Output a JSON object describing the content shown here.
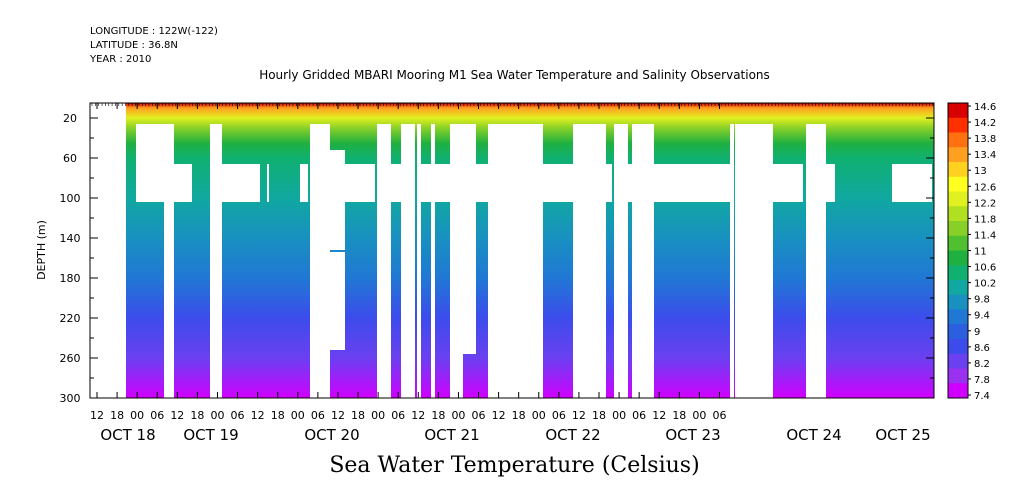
{
  "meta_lines": [
    "LONGITUDE : 122W(-122)",
    "LATITUDE : 36.8N",
    "YEAR : 2010"
  ],
  "chart_data": {
    "type": "heatmap",
    "title": "Hourly Gridded MBARI Mooring M1 Sea Water Temperature and Salinity Observations",
    "xlabel": "Sea Water Temperature (Celsius)",
    "ylabel": "DEPTH (m)",
    "y_ticks": [
      20,
      60,
      100,
      140,
      180,
      220,
      260,
      300
    ],
    "ylim": [
      300,
      0
    ],
    "x_hour_ticks": [
      "12",
      "18",
      "00",
      "06",
      "12",
      "18",
      "00",
      "06",
      "12",
      "18",
      "00",
      "06",
      "12",
      "18",
      "00",
      "06",
      "12",
      "18",
      "00",
      "06",
      "12",
      "18",
      "00",
      "06",
      "12",
      "18",
      "00",
      "06",
      "12",
      "18",
      "00",
      "06"
    ],
    "x_day_labels": [
      "OCT 18",
      "OCT 19",
      "OCT 20",
      "OCT 21",
      "OCT 22",
      "OCT 23",
      "OCT 24",
      "OCT 25"
    ],
    "colorbar_levels": [
      "14.6",
      "14.2",
      "13.8",
      "13.4",
      "13",
      "12.6",
      "12.2",
      "11.8",
      "11.4",
      "11",
      "10.6",
      "10.2",
      "9.8",
      "9.4",
      "9",
      "8.6",
      "8.2",
      "7.8",
      "7.4"
    ],
    "value_range": [
      7.4,
      14.8
    ],
    "profile": [
      {
        "depth": 0,
        "temp": 14.6
      },
      {
        "depth": 10,
        "temp": 13.6
      },
      {
        "depth": 20,
        "temp": 12.4
      },
      {
        "depth": 30,
        "temp": 11.6
      },
      {
        "depth": 45,
        "temp": 11.0
      },
      {
        "depth": 60,
        "temp": 10.7
      },
      {
        "depth": 100,
        "temp": 10.2
      },
      {
        "depth": 140,
        "temp": 9.7
      },
      {
        "depth": 180,
        "temp": 9.3
      },
      {
        "depth": 220,
        "temp": 8.8
      },
      {
        "depth": 260,
        "temp": 8.2
      },
      {
        "depth": 300,
        "temp": 7.6
      }
    ],
    "palette": [
      "#d000ff",
      "#9a30f0",
      "#6a40f0",
      "#3c4cec",
      "#2c5ee0",
      "#2078d4",
      "#1890c0",
      "#10a8a0",
      "#10b070",
      "#20b040",
      "#50c030",
      "#88d028",
      "#b0e020",
      "#e0f020",
      "#ffff20",
      "#ffd020",
      "#ffa020",
      "#ff7010",
      "#ff3000",
      "#d80000"
    ]
  }
}
